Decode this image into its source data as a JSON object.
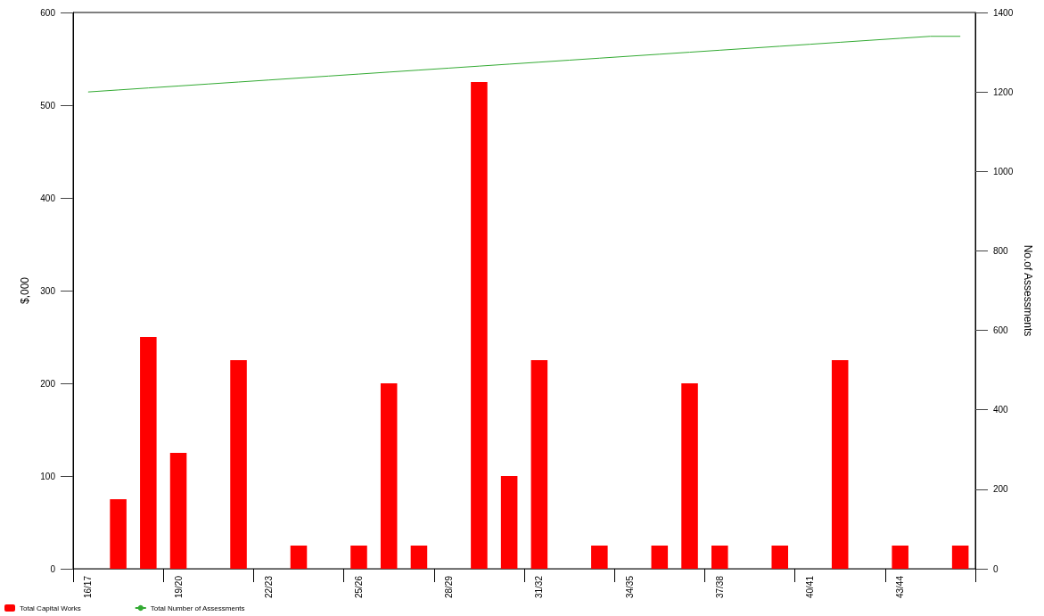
{
  "chart_data": {
    "type": "bar",
    "categories": [
      "16/17",
      null,
      null,
      "19/20",
      null,
      null,
      "22/23",
      null,
      null,
      "25/26",
      null,
      null,
      "28/29",
      null,
      null,
      "31/32",
      null,
      null,
      "34/35",
      null,
      null,
      "37/38",
      null,
      null,
      "40/41",
      null,
      null,
      "43/44",
      null,
      null
    ],
    "series": [
      {
        "name": "Total Capital Works",
        "color": "#ff0000",
        "values": [
          0,
          75,
          250,
          125,
          0,
          225,
          0,
          25,
          0,
          25,
          200,
          25,
          0,
          525,
          100,
          225,
          0,
          25,
          0,
          25,
          200,
          25,
          0,
          25,
          0,
          225,
          0,
          25,
          0,
          25
        ]
      },
      {
        "name": "Total Number of Assessments",
        "type": "line",
        "axis": "y2",
        "color": "#33aa33",
        "values": [
          1200,
          1205,
          1210,
          1215,
          1220,
          1225,
          1230,
          1235,
          1240,
          1245,
          1250,
          1255,
          1260,
          1265,
          1270,
          1275,
          1280,
          1285,
          1290,
          1295,
          1300,
          1305,
          1310,
          1315,
          1320,
          1325,
          1330,
          1335,
          1340,
          1340
        ]
      }
    ],
    "ylabel": "$,000",
    "y2label": "No.of Assessments",
    "ylim": [
      0,
      600
    ],
    "yticks": [
      0,
      100,
      200,
      300,
      400,
      500,
      600
    ],
    "y2lim": [
      0,
      1400
    ],
    "y2ticks": [
      0,
      200,
      400,
      600,
      800,
      1000,
      1200,
      1400
    ],
    "grid": false,
    "legend": "bottom left",
    "marker": "none",
    "line_style": "solid"
  }
}
